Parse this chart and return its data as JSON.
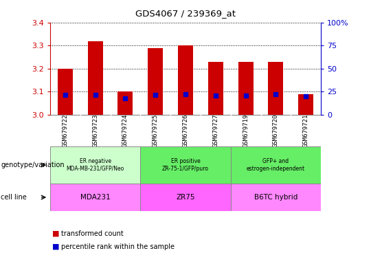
{
  "title": "GDS4067 / 239369_at",
  "samples": [
    "GSM679722",
    "GSM679723",
    "GSM679724",
    "GSM679725",
    "GSM679726",
    "GSM679727",
    "GSM679719",
    "GSM679720",
    "GSM679721"
  ],
  "red_values": [
    3.2,
    3.32,
    3.1,
    3.29,
    3.3,
    3.23,
    3.23,
    3.23,
    3.09
  ],
  "blue_values": [
    3.085,
    3.087,
    3.073,
    3.085,
    3.088,
    3.082,
    3.082,
    3.088,
    3.08
  ],
  "ylim": [
    3.0,
    3.4
  ],
  "yticks_left": [
    3.0,
    3.1,
    3.2,
    3.3,
    3.4
  ],
  "yticks_right": [
    0,
    25,
    50,
    75,
    100
  ],
  "ytick_labels_right": [
    "0",
    "25",
    "50",
    "75",
    "100%"
  ],
  "groups_info": [
    {
      "label": "ER negative\nMDA-MB-231/GFP/Neo",
      "start": 0,
      "end": 3,
      "geno_color": "#ccffcc",
      "cell_label": "MDA231",
      "cell_color": "#ff88ff"
    },
    {
      "label": "ER positive\nZR-75-1/GFP/puro",
      "start": 3,
      "end": 6,
      "geno_color": "#66ee66",
      "cell_label": "ZR75",
      "cell_color": "#ff66ff"
    },
    {
      "label": "GFP+ and\nestrogen-independent",
      "start": 6,
      "end": 9,
      "geno_color": "#66ee66",
      "cell_label": "B6TC hybrid",
      "cell_color": "#ff88ff"
    }
  ],
  "row_labels": [
    "genotype/variation",
    "cell line"
  ],
  "legend_red": "transformed count",
  "legend_blue": "percentile rank within the sample",
  "bar_color": "#cc0000",
  "dot_color": "#0000cc",
  "axis_color_left": "#cc0000",
  "axis_color_right": "#0000cc",
  "bar_width": 0.5,
  "xtick_bg": "#d0d0d0"
}
